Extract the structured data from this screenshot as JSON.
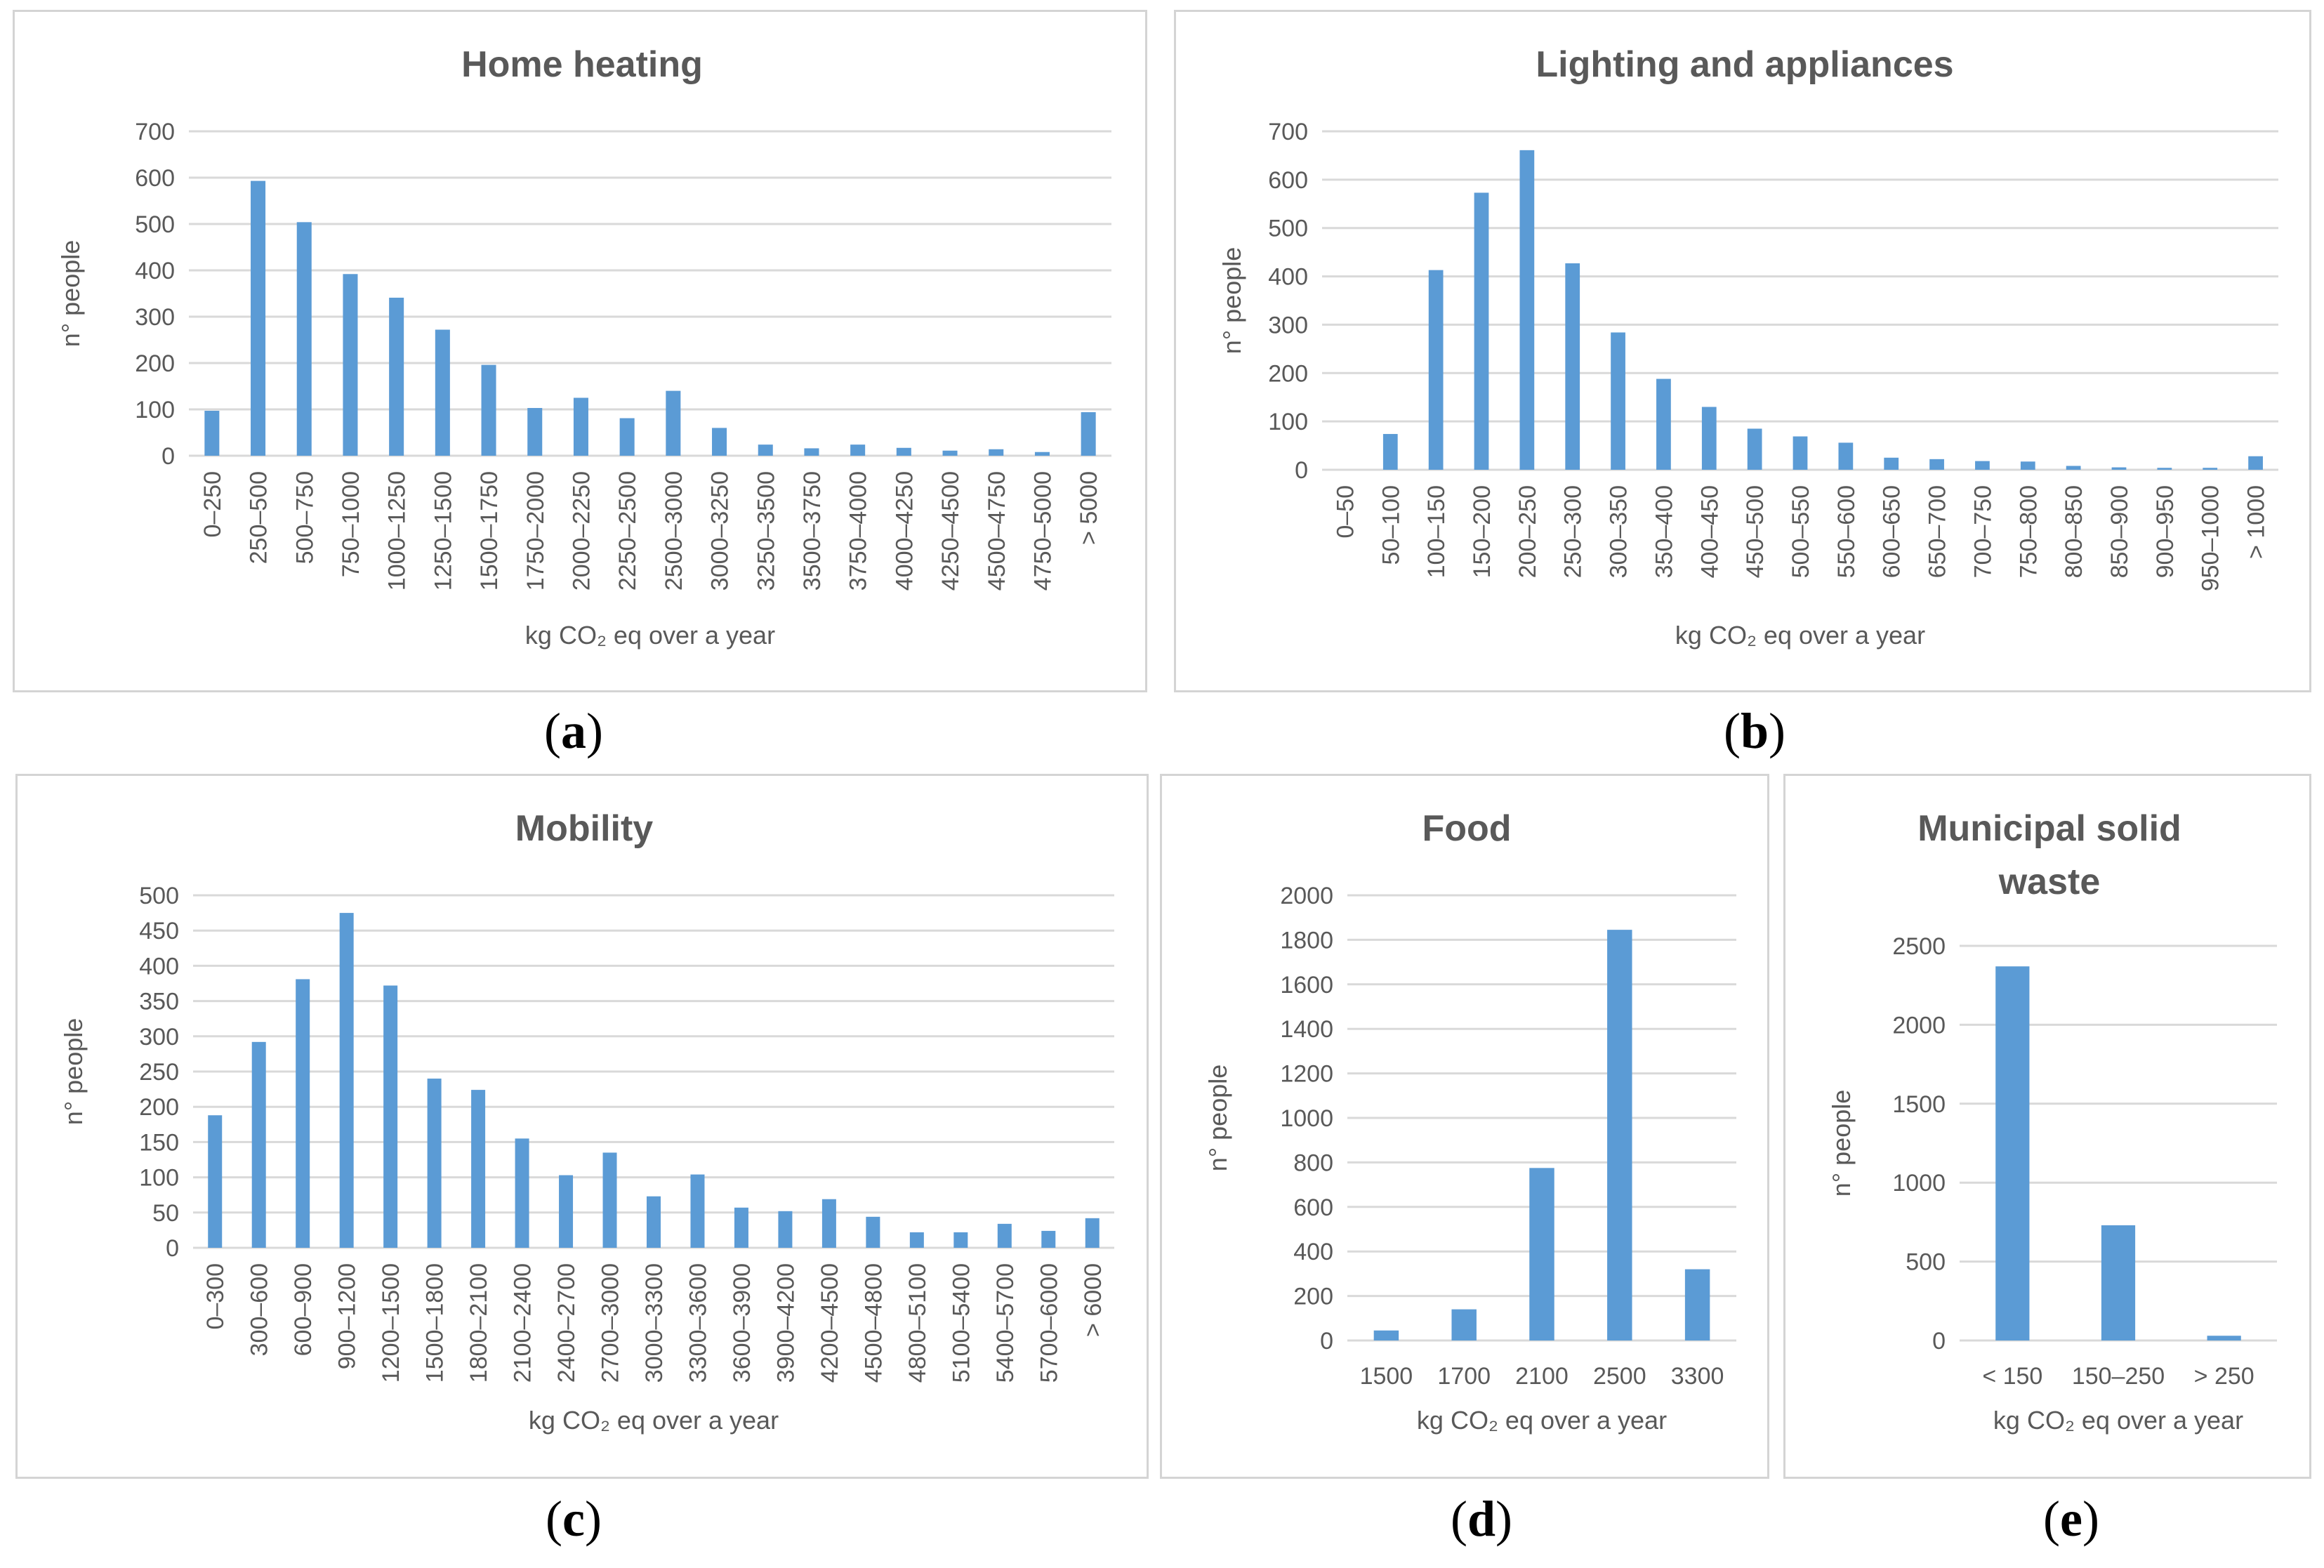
{
  "colors": {
    "bar": "#5b9bd5",
    "grid": "#d9d9d9",
    "text": "#595959",
    "border": "#d4d4d4"
  },
  "captions": {
    "a": "a",
    "b": "b",
    "c": "c",
    "d": "d",
    "e": "e"
  },
  "chart_data": [
    {
      "id": "a",
      "type": "bar",
      "title": "Home heating",
      "xlabel": "kg CO₂ eq over a year",
      "ylabel": "n° people",
      "ylim": [
        0,
        700
      ],
      "yticks": [
        0,
        100,
        200,
        300,
        400,
        500,
        600,
        700
      ],
      "categories": [
        "0–250",
        "250–500",
        "500–750",
        "750–1000",
        "1000–1250",
        "1250–1500",
        "1500–1750",
        "1750–2000",
        "2000–2250",
        "2250–2500",
        "2500–3000",
        "3000–3250",
        "3250–3500",
        "3500–3750",
        "3750–4000",
        "4000–4250",
        "4250–4500",
        "4500–4750",
        "4750–5000",
        "> 5000"
      ],
      "values": [
        97,
        593,
        504,
        392,
        341,
        272,
        196,
        103,
        125,
        81,
        140,
        60,
        24,
        16,
        24,
        17,
        11,
        14,
        8,
        94
      ]
    },
    {
      "id": "b",
      "type": "bar",
      "title": "Lighting and appliances",
      "xlabel": "kg CO₂ eq over a year",
      "ylabel": "n° people",
      "ylim": [
        0,
        700
      ],
      "yticks": [
        0,
        100,
        200,
        300,
        400,
        500,
        600,
        700
      ],
      "categories": [
        "0–50",
        "50–100",
        "100–150",
        "150–200",
        "200–250",
        "250–300",
        "300–350",
        "350–400",
        "400–450",
        "450–500",
        "500–550",
        "550–600",
        "600–650",
        "650–700",
        "700–750",
        "750–800",
        "800–850",
        "850–900",
        "900–950",
        "950–1000",
        "> 1000"
      ],
      "values": [
        0,
        74,
        413,
        573,
        661,
        427,
        284,
        188,
        130,
        85,
        69,
        56,
        25,
        22,
        18,
        17,
        8,
        5,
        4,
        4,
        28
      ]
    },
    {
      "id": "c",
      "type": "bar",
      "title": "Mobility",
      "xlabel": "kg CO₂ eq over a year",
      "ylabel": "n° people",
      "ylim": [
        0,
        500
      ],
      "yticks": [
        0,
        50,
        100,
        150,
        200,
        250,
        300,
        350,
        400,
        450,
        500
      ],
      "categories": [
        "0–300",
        "300–600",
        "600–900",
        "900–1200",
        "1200–1500",
        "1500–1800",
        "1800–2100",
        "2100–2400",
        "2400–2700",
        "2700–3000",
        "3000–3300",
        "3300–3600",
        "3600–3900",
        "3900–4200",
        "4200–4500",
        "4500–4800",
        "4800–5100",
        "5100–5400",
        "5400–5700",
        "5700–6000",
        "> 6000"
      ],
      "values": [
        188,
        292,
        381,
        475,
        372,
        240,
        224,
        155,
        103,
        135,
        73,
        104,
        57,
        52,
        69,
        44,
        22,
        22,
        34,
        24,
        42
      ]
    },
    {
      "id": "d",
      "type": "bar",
      "title": "Food",
      "xlabel": "kg CO₂ eq over a year",
      "ylabel": "n° people",
      "ylim": [
        0,
        2000
      ],
      "yticks": [
        0,
        200,
        400,
        600,
        800,
        1000,
        1200,
        1400,
        1600,
        1800,
        2000
      ],
      "categories": [
        "1500",
        "1700",
        "2100",
        "2500",
        "3300"
      ],
      "values": [
        45,
        140,
        775,
        1845,
        320
      ]
    },
    {
      "id": "e",
      "type": "bar",
      "title": "Municipal solid waste",
      "title_lines": [
        "Municipal solid",
        "waste"
      ],
      "xlabel": "kg CO₂ eq over a year",
      "ylabel": "n° people",
      "ylim": [
        0,
        2500
      ],
      "yticks": [
        0,
        500,
        1000,
        1500,
        2000,
        2500
      ],
      "categories": [
        "< 150",
        "150–250",
        "> 250"
      ],
      "values": [
        2370,
        730,
        30
      ]
    }
  ]
}
